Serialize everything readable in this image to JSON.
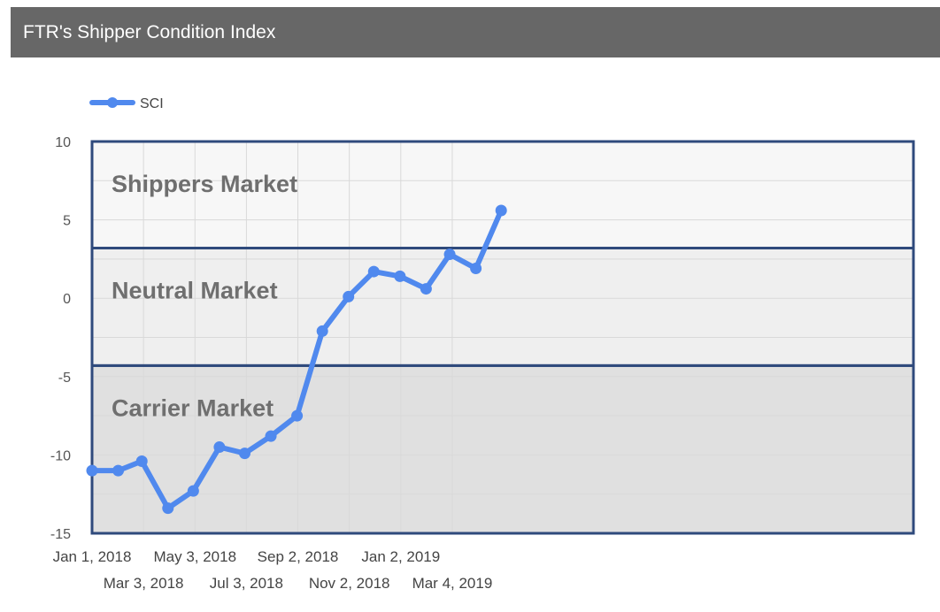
{
  "header": {
    "title": "FTR's Shipper Condition Index"
  },
  "chart_data": {
    "type": "line",
    "title": "FTR's Shipper Condition Index",
    "xlabel": "",
    "ylabel": "",
    "ylim": [
      -15,
      10
    ],
    "y_ticks": [
      "10",
      "5",
      "0",
      "-5",
      "-10",
      "-15"
    ],
    "x_tick_labels": [
      "Jan 1, 2018",
      "Mar 3, 2018",
      "May 3, 2018",
      "Jul 3, 2018",
      "Sep 2, 2018",
      "Nov 2, 2018",
      "Jan 2, 2019",
      "Mar 4, 2019"
    ],
    "grid": true,
    "legend_position": "top-left",
    "series": [
      {
        "name": "SCI",
        "color": "#5089ee",
        "x": [
          "2018-01-01",
          "2018-02-01",
          "2018-03-01",
          "2018-04-01",
          "2018-05-01",
          "2018-06-01",
          "2018-07-01",
          "2018-08-01",
          "2018-09-01",
          "2018-10-01",
          "2018-11-01",
          "2018-12-01",
          "2019-01-01",
          "2019-02-01",
          "2019-03-01",
          "2019-04-01",
          "2019-05-01"
        ],
        "values": [
          -11.0,
          -11.0,
          -10.4,
          -13.4,
          -12.3,
          -9.5,
          -9.9,
          -8.8,
          -7.5,
          -2.1,
          0.1,
          1.7,
          1.4,
          0.6,
          2.8,
          1.9,
          5.6
        ]
      }
    ],
    "regions": [
      {
        "label": "Shippers Market",
        "from": 3.2,
        "to": 10,
        "fill": "#f7f7f7"
      },
      {
        "label": "Neutral Market",
        "from": -4.3,
        "to": 3.2,
        "fill": "#efefef"
      },
      {
        "label": "Carrier Market",
        "from": -15,
        "to": -4.3,
        "fill": "#e0e0e0"
      }
    ],
    "region_border_color": "#2f4a7c"
  }
}
